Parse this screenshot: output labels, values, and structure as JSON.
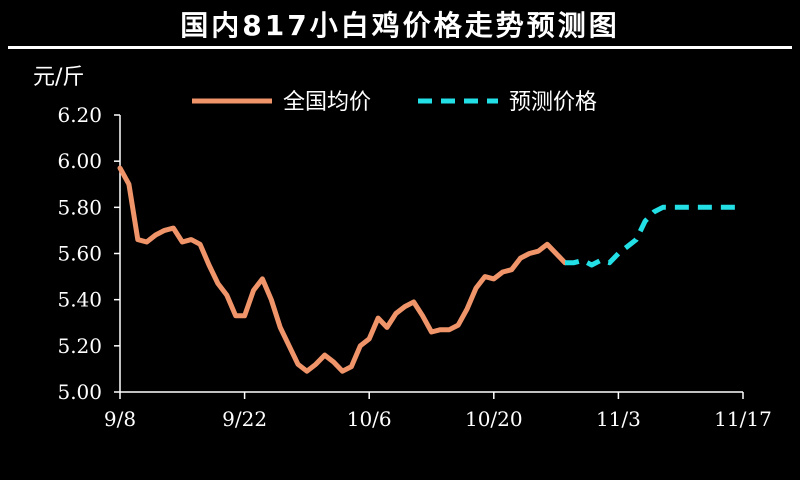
{
  "header": {
    "title": "国内817小白鸡价格走势预测图"
  },
  "chart_data": {
    "type": "line",
    "title": "国内817小白鸡价格走势预测图",
    "ylabel": "元/斤",
    "xlabel": "",
    "ylim": [
      5.0,
      6.2
    ],
    "yticks": [
      5.0,
      5.2,
      5.4,
      5.6,
      5.8,
      6.0,
      6.2
    ],
    "ytick_labels": [
      "5.00",
      "5.20",
      "5.40",
      "5.60",
      "5.80",
      "6.00",
      "6.20"
    ],
    "xlim": [
      "9/8",
      "11/17"
    ],
    "xtick_labels": [
      "9/8",
      "9/22",
      "10/6",
      "10/20",
      "11/3",
      "11/17"
    ],
    "grid": false,
    "legend_position": "top",
    "colors": {
      "background": "#000000",
      "actual": "#f0946a",
      "forecast": "#22e0e6",
      "axis": "#ffffff"
    },
    "series": [
      {
        "name": "全国均价",
        "style": "solid",
        "points": [
          [
            "9/8",
            5.97
          ],
          [
            "9/9",
            5.9
          ],
          [
            "9/10",
            5.66
          ],
          [
            "9/11",
            5.65
          ],
          [
            "9/12",
            5.68
          ],
          [
            "9/13",
            5.7
          ],
          [
            "9/14",
            5.71
          ],
          [
            "9/15",
            5.65
          ],
          [
            "9/16",
            5.66
          ],
          [
            "9/17",
            5.64
          ],
          [
            "9/18",
            5.55
          ],
          [
            "9/19",
            5.47
          ],
          [
            "9/20",
            5.42
          ],
          [
            "9/21",
            5.33
          ],
          [
            "9/22",
            5.33
          ],
          [
            "9/23",
            5.44
          ],
          [
            "9/24",
            5.49
          ],
          [
            "9/25",
            5.4
          ],
          [
            "9/26",
            5.28
          ],
          [
            "9/27",
            5.2
          ],
          [
            "9/28",
            5.12
          ],
          [
            "9/29",
            5.09
          ],
          [
            "9/30",
            5.12
          ],
          [
            "10/1",
            5.16
          ],
          [
            "10/2",
            5.13
          ],
          [
            "10/3",
            5.09
          ],
          [
            "10/4",
            5.11
          ],
          [
            "10/5",
            5.2
          ],
          [
            "10/6",
            5.23
          ],
          [
            "10/7",
            5.32
          ],
          [
            "10/8",
            5.28
          ],
          [
            "10/9",
            5.34
          ],
          [
            "10/10",
            5.37
          ],
          [
            "10/11",
            5.39
          ],
          [
            "10/12",
            5.33
          ],
          [
            "10/13",
            5.26
          ],
          [
            "10/14",
            5.27
          ],
          [
            "10/15",
            5.27
          ],
          [
            "10/16",
            5.29
          ],
          [
            "10/17",
            5.36
          ],
          [
            "10/18",
            5.45
          ],
          [
            "10/19",
            5.5
          ],
          [
            "10/20",
            5.49
          ],
          [
            "10/21",
            5.52
          ],
          [
            "10/22",
            5.53
          ],
          [
            "10/23",
            5.58
          ],
          [
            "10/24",
            5.6
          ],
          [
            "10/25",
            5.61
          ],
          [
            "10/26",
            5.64
          ],
          [
            "10/27",
            5.6
          ],
          [
            "10/28",
            5.56
          ]
        ]
      },
      {
        "name": "预测价格",
        "style": "dashed",
        "points": [
          [
            "10/28",
            5.56
          ],
          [
            "10/29",
            5.56
          ],
          [
            "10/30",
            5.57
          ],
          [
            "10/31",
            5.55
          ],
          [
            "11/1",
            5.57
          ],
          [
            "11/2",
            5.56
          ],
          [
            "11/3",
            5.6
          ],
          [
            "11/4",
            5.63
          ],
          [
            "11/5",
            5.66
          ],
          [
            "11/6",
            5.74
          ],
          [
            "11/7",
            5.78
          ],
          [
            "11/8",
            5.8
          ],
          [
            "11/9",
            5.8
          ],
          [
            "11/10",
            5.8
          ],
          [
            "11/11",
            5.8
          ],
          [
            "11/12",
            5.8
          ],
          [
            "11/13",
            5.8
          ],
          [
            "11/14",
            5.8
          ],
          [
            "11/15",
            5.8
          ],
          [
            "11/16",
            5.8
          ],
          [
            "11/17",
            5.8
          ]
        ]
      }
    ]
  }
}
